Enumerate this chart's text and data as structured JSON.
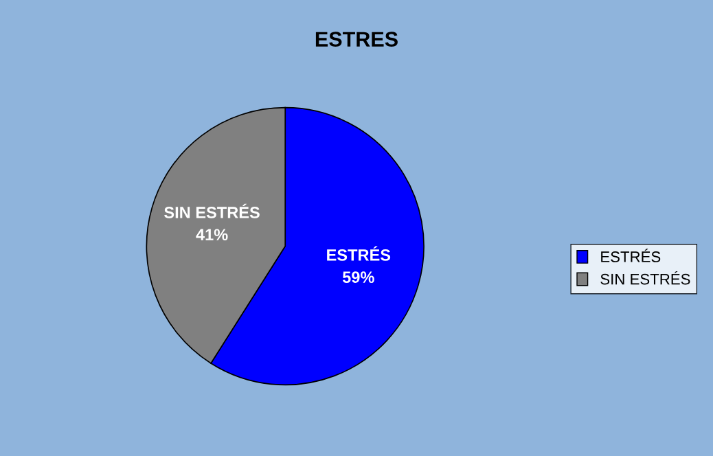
{
  "chart_data": {
    "type": "pie",
    "title": "ESTRES",
    "categories": [
      "ESTRÉS",
      "SIN ESTRÉS"
    ],
    "values": [
      59,
      41
    ],
    "colors": [
      "#0000ff",
      "#808080"
    ],
    "value_labels": [
      "59%",
      "41%"
    ],
    "legend": "right"
  }
}
